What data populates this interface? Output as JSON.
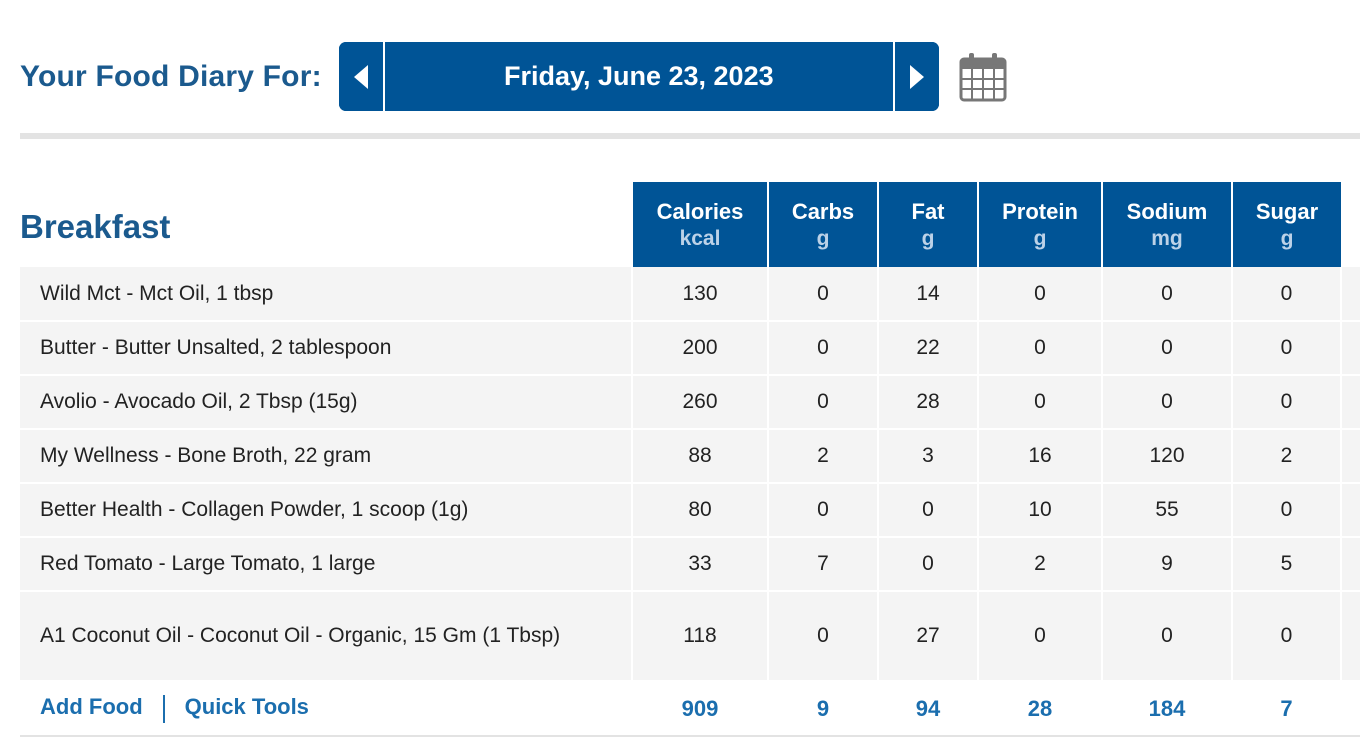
{
  "header": {
    "label": "Your Food Diary For:",
    "date": "Friday, June 23, 2023",
    "prev_icon": "chevron-left-icon",
    "next_icon": "chevron-right-icon",
    "calendar_icon": "calendar-icon"
  },
  "meal": {
    "title": "Breakfast",
    "columns": [
      {
        "name": "Calories",
        "unit": "kcal"
      },
      {
        "name": "Carbs",
        "unit": "g"
      },
      {
        "name": "Fat",
        "unit": "g"
      },
      {
        "name": "Protein",
        "unit": "g"
      },
      {
        "name": "Sodium",
        "unit": "mg"
      },
      {
        "name": "Sugar",
        "unit": "g"
      }
    ],
    "entries": [
      {
        "food": "Wild Mct - Mct Oil, 1 tbsp",
        "calories": "130",
        "carbs": "0",
        "fat": "14",
        "protein": "0",
        "sodium": "0",
        "sugar": "0"
      },
      {
        "food": "Butter - Butter Unsalted, 2 tablespoon",
        "calories": "200",
        "carbs": "0",
        "fat": "22",
        "protein": "0",
        "sodium": "0",
        "sugar": "0"
      },
      {
        "food": "Avolio - Avocado Oil, 2 Tbsp (15g)",
        "calories": "260",
        "carbs": "0",
        "fat": "28",
        "protein": "0",
        "sodium": "0",
        "sugar": "0"
      },
      {
        "food": "My Wellness - Bone Broth, 22 gram",
        "calories": "88",
        "carbs": "2",
        "fat": "3",
        "protein": "16",
        "sodium": "120",
        "sugar": "2"
      },
      {
        "food": "Better Health - Collagen Powder, 1 scoop (1g)",
        "calories": "80",
        "carbs": "0",
        "fat": "0",
        "protein": "10",
        "sodium": "55",
        "sugar": "0"
      },
      {
        "food": "Red Tomato - Large Tomato, 1 large",
        "calories": "33",
        "carbs": "7",
        "fat": "0",
        "protein": "2",
        "sodium": "9",
        "sugar": "5"
      },
      {
        "food": "A1 Coconut Oil - Coconut Oil - Organic, 15 Gm (1 Tbsp)",
        "calories": "118",
        "carbs": "0",
        "fat": "27",
        "protein": "0",
        "sodium": "0",
        "sugar": "0"
      }
    ],
    "actions": {
      "add_food": "Add Food",
      "quick_tools": "Quick Tools"
    },
    "totals": {
      "calories": "909",
      "carbs": "9",
      "fat": "94",
      "protein": "28",
      "sodium": "184",
      "sugar": "7"
    }
  }
}
